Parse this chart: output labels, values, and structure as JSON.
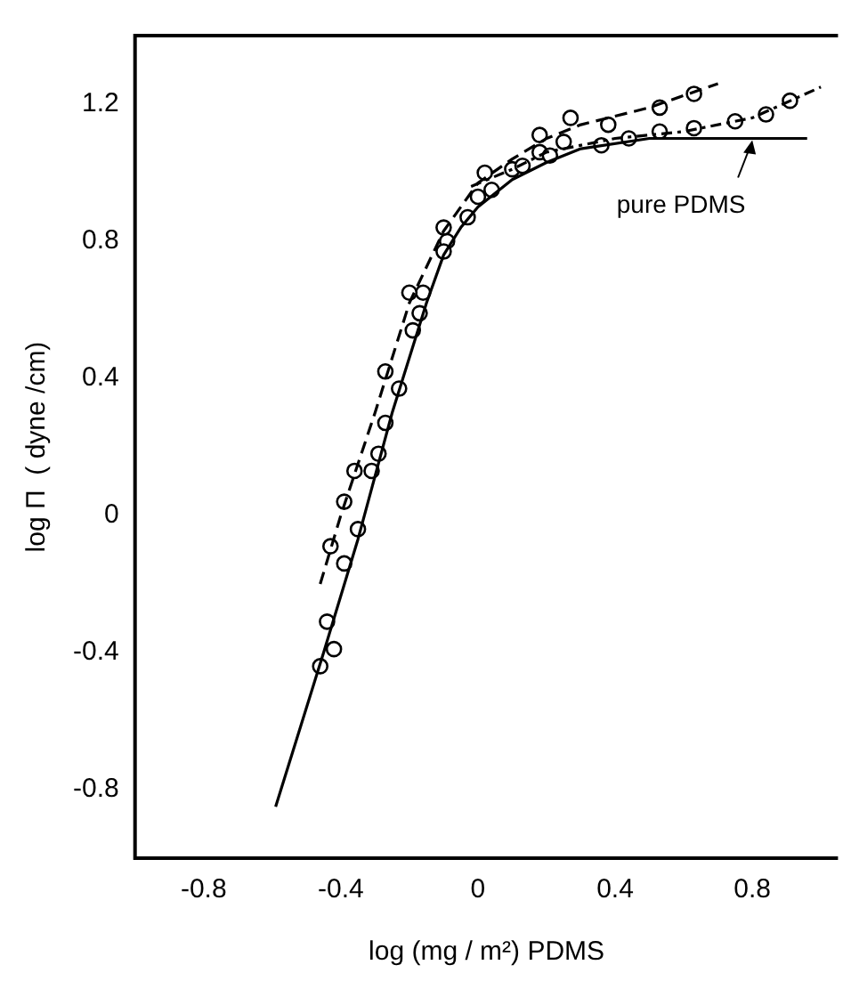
{
  "chart_data": {
    "type": "line",
    "xlabel": "log (mg / m²) PDMS",
    "ylabel": "log Π  ( dyne /cm)",
    "xlim": [
      -1.0,
      1.05
    ],
    "xticks": [
      -0.8,
      -0.4,
      0,
      0.4,
      0.8
    ],
    "ylim": [
      -1.0,
      1.4
    ],
    "yticks": [
      -0.8,
      -0.4,
      0,
      0.4,
      0.8,
      1.2
    ],
    "grid": false,
    "legend": false,
    "annotations": [
      {
        "text": "pure PDMS",
        "x": 0.8,
        "y": 1.1
      }
    ],
    "series": [
      {
        "color": "#000000",
        "marker": "none",
        "line_style": "solid",
        "x": [
          -0.59,
          -0.45,
          -0.35,
          -0.25,
          -0.15,
          -0.1,
          -0.05,
          0,
          0.1,
          0.2,
          0.3,
          0.5,
          0.96
        ],
        "values": [
          -0.85,
          -0.4,
          -0.07,
          0.3,
          0.62,
          0.76,
          0.84,
          0.9,
          0.98,
          1.03,
          1.07,
          1.1,
          1.1
        ]
      },
      {
        "color": "#000000",
        "marker": "none",
        "line_style": "dashed",
        "x": [
          -0.46,
          -0.4,
          -0.3,
          -0.2,
          -0.1,
          0,
          0.1,
          0.2,
          0.3,
          0.5,
          0.7
        ],
        "values": [
          -0.2,
          0.0,
          0.3,
          0.62,
          0.83,
          0.97,
          1.04,
          1.1,
          1.14,
          1.19,
          1.26
        ]
      },
      {
        "color": "#000000",
        "marker": "none",
        "line_style": "dotted",
        "x": [
          -0.02,
          0.1,
          0.2,
          0.4,
          0.6,
          0.8,
          1.0
        ],
        "values": [
          0.96,
          1.01,
          1.06,
          1.1,
          1.12,
          1.16,
          1.25
        ]
      },
      {
        "type": "scatter",
        "color": "#000000",
        "marker": "circle",
        "x": [
          -0.43,
          -0.39,
          -0.36,
          -0.27,
          -0.2,
          -0.1,
          0.02,
          0.18,
          0.27,
          0.38,
          0.53,
          0.63
        ],
        "values": [
          -0.09,
          0.04,
          0.13,
          0.42,
          0.65,
          0.84,
          1.0,
          1.11,
          1.16,
          1.14,
          1.19,
          1.23
        ]
      },
      {
        "type": "scatter",
        "color": "#000000",
        "marker": "circle",
        "x": [
          -0.46,
          -0.44,
          -0.42,
          -0.39,
          -0.35,
          -0.31,
          -0.29,
          -0.27,
          -0.23,
          -0.19,
          -0.17,
          -0.16,
          -0.09,
          -0.1,
          -0.03,
          0.0,
          0.04,
          0.1,
          0.13,
          0.18,
          0.21,
          0.25,
          0.36,
          0.44,
          0.53,
          0.63,
          0.75,
          0.84,
          0.91
        ],
        "values": [
          -0.44,
          -0.31,
          -0.39,
          -0.14,
          -0.04,
          0.13,
          0.18,
          0.27,
          0.37,
          0.54,
          0.59,
          0.65,
          0.8,
          0.77,
          0.87,
          0.93,
          0.95,
          1.01,
          1.02,
          1.06,
          1.05,
          1.09,
          1.08,
          1.1,
          1.12,
          1.13,
          1.15,
          1.17,
          1.21
        ]
      }
    ]
  }
}
